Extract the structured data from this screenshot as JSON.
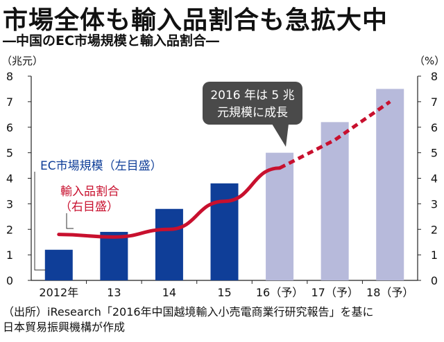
{
  "header": {
    "title": "市場全体も輸入品割合も急拡大中",
    "subtitle": "―中国のEC市場規模と輸入品割合―"
  },
  "source": {
    "line1": "（出所）iResearch「2016年中国越境輸入小売電商業行研究報告」を基に",
    "line2": "日本貿易振興機構が作成"
  },
  "colors": {
    "bar_actual": "#0f3e98",
    "bar_forecast": "#b7badb",
    "line": "#c8102e",
    "callout_bg": "#4a4a4a"
  },
  "chart_data": {
    "type": "bar",
    "categories": [
      "2012年",
      "13",
      "14",
      "15",
      "16（予）",
      "17（予）",
      "18（予）"
    ],
    "ylabel_left": "（兆元）",
    "ylabel_right": "（%）",
    "ylim": [
      0,
      8
    ],
    "yticks": [
      "0",
      "1",
      "2",
      "3",
      "4",
      "5",
      "6",
      "7",
      "8"
    ],
    "grid": false,
    "series": [
      {
        "name": "EC市場規模（左目盛）",
        "kind": "bar",
        "axis": "left",
        "values": [
          1.2,
          1.9,
          2.8,
          3.8,
          5.0,
          6.2,
          7.5
        ],
        "forecast_from_index": 4
      },
      {
        "name": "輸入品割合",
        "name_sub": "（右目盛）",
        "kind": "line",
        "axis": "right",
        "values": [
          1.8,
          1.7,
          2.0,
          3.1,
          4.4,
          5.5,
          7.0
        ],
        "dashed_from_index": 4
      }
    ],
    "annotation": {
      "line1": "2016 年は 5 兆",
      "line2": "元規模に成長"
    }
  }
}
